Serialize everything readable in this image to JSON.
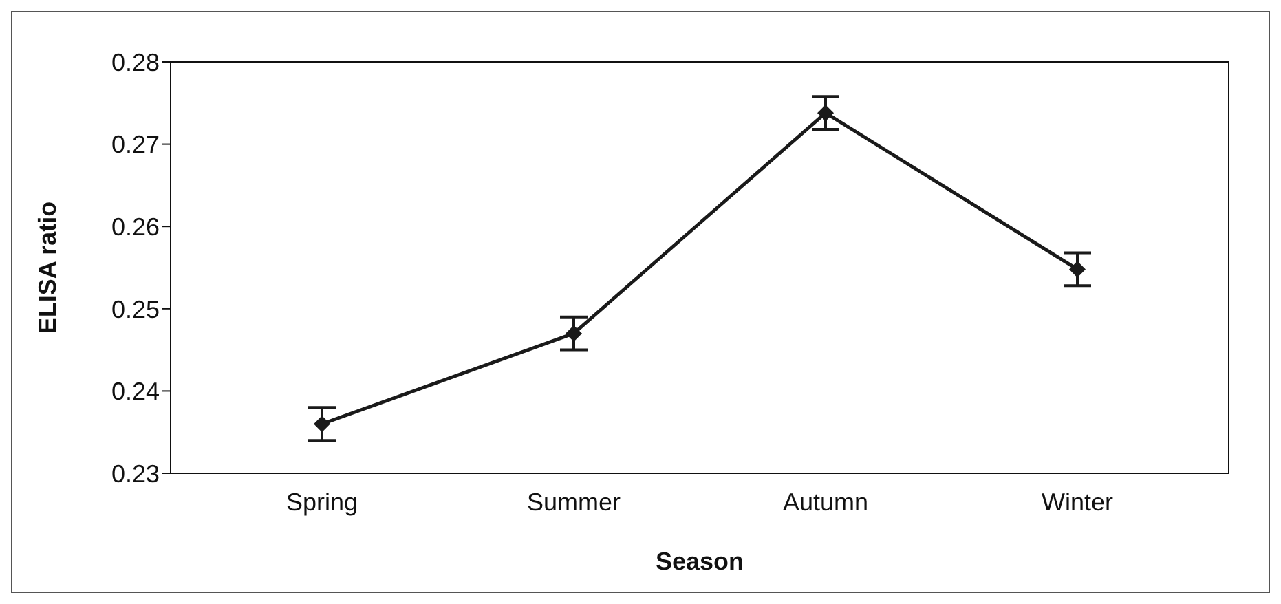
{
  "chart_data": {
    "type": "line",
    "xlabel": "Season",
    "ylabel": "ELISA ratio",
    "categories": [
      "Spring",
      "Summer",
      "Autumn",
      "Winter"
    ],
    "series": [
      {
        "color": "#1a1a1a",
        "values": [
          0.236,
          0.247,
          0.2738,
          0.2548
        ],
        "errors": [
          0.002,
          0.002,
          0.002,
          0.002
        ]
      }
    ],
    "ylim": [
      0.23,
      0.28
    ],
    "yticks": [
      0.23,
      0.24,
      0.25,
      0.26,
      0.27,
      0.28
    ],
    "grid": false,
    "legend": false,
    "marker": "diamond",
    "line_style": "solid"
  }
}
